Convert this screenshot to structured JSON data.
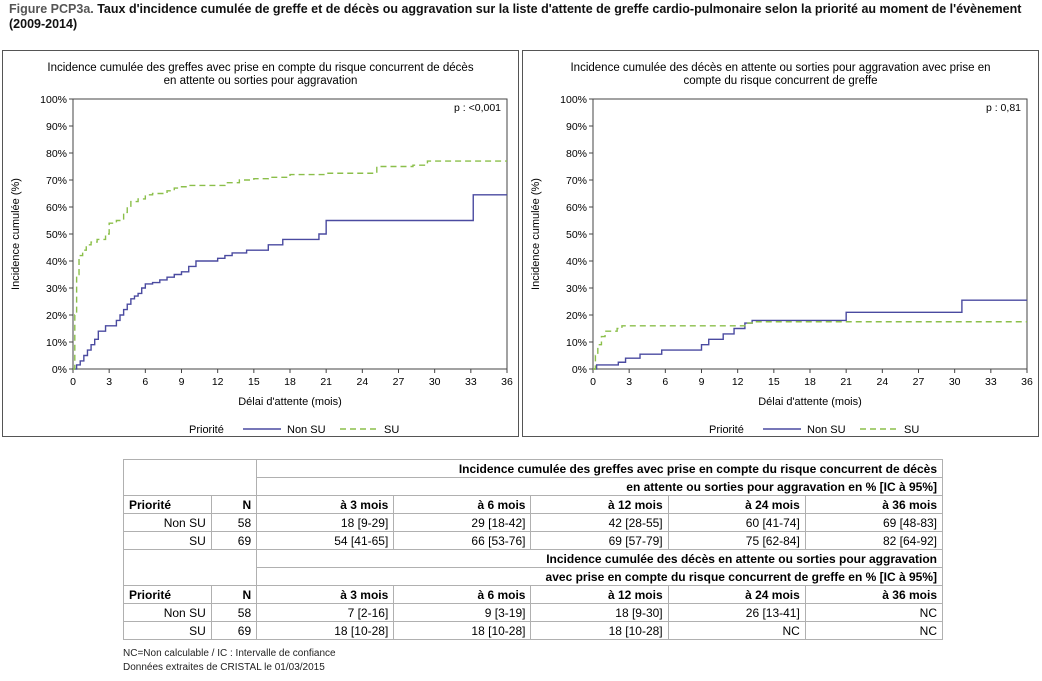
{
  "figure": {
    "prefix": "Figure PCP3a.",
    "title": " Taux d'incidence cumulée de greffe et de décès ou aggravation sur la liste d'attente de greffe cardio-pulmonaire selon la priorité au moment de l'évènement (2009-2014)"
  },
  "chart_data": [
    {
      "type": "line",
      "title": "Incidence cumulée des greffes avec prise en compte du risque concurrent de décès en attente ou sorties pour aggravation",
      "xlabel": "Délai d'attente (mois)",
      "ylabel": "Incidence cumulée (%)",
      "xlim": [
        0,
        36
      ],
      "ylim": [
        0,
        100
      ],
      "x_ticks": [
        "0",
        "3",
        "6",
        "9",
        "12",
        "15",
        "18",
        "21",
        "24",
        "27",
        "30",
        "33",
        "36"
      ],
      "y_ticks": [
        "0%",
        "10%",
        "20%",
        "30%",
        "40%",
        "50%",
        "60%",
        "70%",
        "80%",
        "90%",
        "100%"
      ],
      "annotation": "p : <0,001",
      "legend_title": "Priorité",
      "legend_position": "bottom",
      "series": [
        {
          "name": "Non SU",
          "color": "#4a4aa0",
          "dash": "solid",
          "x": [
            0,
            0.3,
            0.6,
            0.9,
            1.2,
            1.5,
            1.8,
            2.1,
            2.7,
            3.3,
            3.6,
            3.9,
            4.2,
            4.5,
            4.8,
            5.1,
            5.4,
            5.7,
            6.0,
            6.6,
            7.2,
            7.8,
            8.4,
            9.0,
            9.6,
            10.2,
            12.0,
            12.6,
            13.2,
            14.4,
            16.2,
            17.4,
            20.4,
            21.0,
            33.0,
            33.2,
            36.0
          ],
          "y": [
            0,
            1.5,
            3,
            5,
            7,
            9,
            11,
            14,
            16,
            16,
            18,
            20,
            22,
            24,
            26,
            27,
            28,
            30,
            31.5,
            32,
            33,
            34,
            35,
            36,
            38,
            40,
            41,
            42,
            43,
            44,
            46,
            48,
            50,
            55,
            55,
            64.5,
            64.5
          ]
        },
        {
          "name": "SU",
          "color": "#8bbf4a",
          "dash": "dashed",
          "x": [
            0,
            0.15,
            0.3,
            0.5,
            0.8,
            1.1,
            1.5,
            2.0,
            2.7,
            3.0,
            3.6,
            4.2,
            4.5,
            4.8,
            5.4,
            6.0,
            6.6,
            7.8,
            8.4,
            9.0,
            9.6,
            12.6,
            13.8,
            15.0,
            16.2,
            18.0,
            21.0,
            25.2,
            28.2,
            29.4,
            36.0
          ],
          "y": [
            0,
            20,
            35,
            42,
            44,
            46,
            47,
            48,
            50,
            54,
            55,
            58,
            60,
            62,
            63,
            64.5,
            65,
            66,
            67,
            67.5,
            68,
            69,
            70,
            70.5,
            71,
            72,
            72.5,
            75,
            75.5,
            77,
            77
          ]
        }
      ]
    },
    {
      "type": "line",
      "title": "Incidence cumulée des décès en attente ou sorties pour aggravation avec prise en compte du risque concurrent de greffe",
      "xlabel": "Délai d'attente (mois)",
      "ylabel": "Incidence cumulée (%)",
      "xlim": [
        0,
        36
      ],
      "ylim": [
        0,
        100
      ],
      "x_ticks": [
        "0",
        "3",
        "6",
        "9",
        "12",
        "15",
        "18",
        "21",
        "24",
        "27",
        "30",
        "33",
        "36"
      ],
      "y_ticks": [
        "0%",
        "10%",
        "20%",
        "30%",
        "40%",
        "50%",
        "60%",
        "70%",
        "80%",
        "90%",
        "100%"
      ],
      "annotation": "p : 0,81",
      "legend_title": "Priorité",
      "legend_position": "bottom",
      "series": [
        {
          "name": "Non SU",
          "color": "#4a4aa0",
          "dash": "solid",
          "x": [
            0,
            0.3,
            2.1,
            2.7,
            3.9,
            5.7,
            6.3,
            9.0,
            9.6,
            10.8,
            11.7,
            12.6,
            13.2,
            21.0,
            30.6,
            36.0
          ],
          "y": [
            0,
            1.5,
            2.5,
            4,
            5.5,
            7,
            7,
            9,
            11,
            13,
            15,
            17,
            18,
            21,
            25.5,
            25.5
          ]
        },
        {
          "name": "SU",
          "color": "#8bbf4a",
          "dash": "dashed",
          "x": [
            0,
            0.2,
            0.4,
            0.7,
            1.0,
            2.0,
            2.4,
            12.0,
            12.6,
            13.2,
            36.0
          ],
          "y": [
            0,
            5,
            9,
            12,
            14,
            15,
            16,
            16,
            17,
            17.5,
            17.5
          ]
        }
      ]
    }
  ],
  "table": {
    "section1_header": [
      "Incidence cumulée des greffes avec prise en compte du risque concurrent de décès",
      "en attente ou sorties pour aggravation en % [IC à 95%]"
    ],
    "section2_header": [
      "Incidence cumulée des décès en attente ou sorties pour aggravation",
      "avec prise en compte du risque concurrent de greffe en % [IC à 95%]"
    ],
    "columns": [
      "Priorité",
      "N",
      "à 3 mois",
      "à 6 mois",
      "à 12 mois",
      "à 24 mois",
      "à 36 mois"
    ],
    "section1_rows": [
      [
        "Non SU",
        "58",
        "18 [9-29]",
        "29 [18-42]",
        "42 [28-55]",
        "60 [41-74]",
        "69 [48-83]"
      ],
      [
        "SU",
        "69",
        "54 [41-65]",
        "66 [53-76]",
        "69 [57-79]",
        "75 [62-84]",
        "82 [64-92]"
      ]
    ],
    "section2_rows": [
      [
        "Non SU",
        "58",
        "7 [2-16]",
        "9 [3-19]",
        "18 [9-30]",
        "26 [13-41]",
        "NC"
      ],
      [
        "SU",
        "69",
        "18 [10-28]",
        "18 [10-28]",
        "18 [10-28]",
        "NC",
        "NC"
      ]
    ]
  },
  "footnotes": [
    "NC=Non calculable / IC : Intervalle de confiance",
    "Données extraites de CRISTAL le 01/03/2015"
  ]
}
